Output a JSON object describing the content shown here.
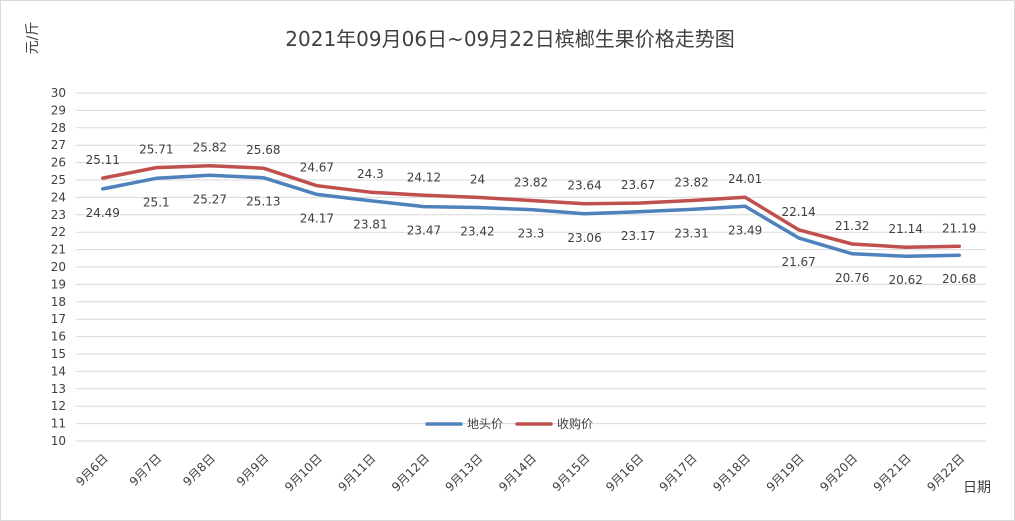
{
  "chart_data": {
    "type": "line",
    "title": "2021年09月06日~09月22日槟榔生果价格走势图",
    "ylabel": "元/斤",
    "xlabel": "日期",
    "ylim": [
      10,
      30
    ],
    "ystep": 1,
    "grid": true,
    "legend_position": "bottom-center",
    "categories": [
      "9月6日",
      "9月7日",
      "9月8日",
      "9月9日",
      "9月10日",
      "9月11日",
      "9月12日",
      "9月13日",
      "9月14日",
      "9月15日",
      "9月16日",
      "9月17日",
      "9月18日",
      "9月19日",
      "9月20日",
      "9月21日",
      "9月22日"
    ],
    "series": [
      {
        "name": "地头价",
        "color": "#4f81bd",
        "label_position": "below",
        "values": [
          24.49,
          25.1,
          25.27,
          25.13,
          24.17,
          23.81,
          23.47,
          23.42,
          23.3,
          23.06,
          23.17,
          23.31,
          23.49,
          21.67,
          20.76,
          20.62,
          20.68
        ]
      },
      {
        "name": "收购价",
        "color": "#c0504d",
        "label_position": "above",
        "values": [
          25.11,
          25.71,
          25.82,
          25.68,
          24.67,
          24.3,
          24.12,
          24,
          23.82,
          23.64,
          23.67,
          23.82,
          24.01,
          22.14,
          21.32,
          21.14,
          21.19
        ]
      }
    ]
  }
}
